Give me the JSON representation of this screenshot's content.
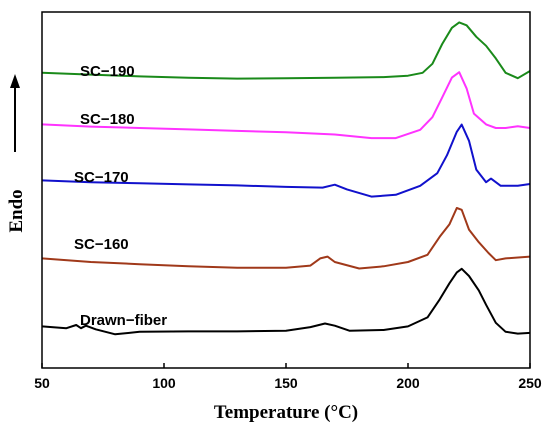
{
  "chart_data": {
    "type": "line",
    "xlabel": "Temperature (°C)",
    "ylabel": "Endo",
    "xlim": [
      50,
      250
    ],
    "x_ticks": [
      "50",
      "100",
      "150",
      "200",
      "250"
    ],
    "y_ticks_shown": false,
    "grid": false,
    "legend": "none",
    "series": [
      {
        "name": "SC-190",
        "label_text": "SC−190",
        "color": "#1a8a1a",
        "points": [
          [
            50,
            0.2
          ],
          [
            70,
            0.15
          ],
          [
            90,
            0.1
          ],
          [
            110,
            0.06
          ],
          [
            130,
            0.04
          ],
          [
            150,
            0.05
          ],
          [
            170,
            0.06
          ],
          [
            190,
            0.08
          ],
          [
            200,
            0.12
          ],
          [
            206,
            0.2
          ],
          [
            210,
            0.45
          ],
          [
            214,
            1.0
          ],
          [
            218,
            1.45
          ],
          [
            221,
            1.6
          ],
          [
            224,
            1.52
          ],
          [
            228,
            1.2
          ],
          [
            232,
            0.95
          ],
          [
            236,
            0.6
          ],
          [
            240,
            0.2
          ],
          [
            245,
            0.05
          ],
          [
            250,
            0.25
          ]
        ]
      },
      {
        "name": "SC-180",
        "label_text": "SC−180",
        "color": "#ff33ff",
        "points": [
          [
            50,
            0.1
          ],
          [
            70,
            0.04
          ],
          [
            90,
            0.0
          ],
          [
            110,
            -0.04
          ],
          [
            130,
            -0.08
          ],
          [
            150,
            -0.12
          ],
          [
            170,
            -0.18
          ],
          [
            185,
            -0.28
          ],
          [
            195,
            -0.28
          ],
          [
            205,
            -0.05
          ],
          [
            210,
            0.3
          ],
          [
            214,
            0.85
          ],
          [
            218,
            1.4
          ],
          [
            221,
            1.55
          ],
          [
            224,
            1.1
          ],
          [
            227,
            0.4
          ],
          [
            232,
            0.1
          ],
          [
            236,
            0.0
          ],
          [
            240,
            0.0
          ],
          [
            245,
            0.05
          ],
          [
            250,
            0.0
          ]
        ]
      },
      {
        "name": "SC-170",
        "label_text": "SC−170",
        "color": "#1111cc",
        "points": [
          [
            50,
            0.1
          ],
          [
            70,
            0.05
          ],
          [
            90,
            0.02
          ],
          [
            110,
            -0.01
          ],
          [
            130,
            -0.04
          ],
          [
            150,
            -0.08
          ],
          [
            165,
            -0.1
          ],
          [
            170,
            -0.02
          ],
          [
            175,
            -0.15
          ],
          [
            185,
            -0.35
          ],
          [
            195,
            -0.3
          ],
          [
            205,
            -0.05
          ],
          [
            212,
            0.3
          ],
          [
            216,
            0.8
          ],
          [
            220,
            1.45
          ],
          [
            222,
            1.65
          ],
          [
            225,
            1.2
          ],
          [
            228,
            0.4
          ],
          [
            232,
            0.05
          ],
          [
            234,
            0.15
          ],
          [
            238,
            -0.05
          ],
          [
            245,
            -0.05
          ],
          [
            250,
            0.0
          ]
        ]
      },
      {
        "name": "SC-160",
        "label_text": "SC−160",
        "color": "#a0391a",
        "points": [
          [
            50,
            0.1
          ],
          [
            70,
            0.0
          ],
          [
            90,
            -0.06
          ],
          [
            110,
            -0.12
          ],
          [
            130,
            -0.16
          ],
          [
            150,
            -0.16
          ],
          [
            160,
            -0.1
          ],
          [
            164,
            0.1
          ],
          [
            167,
            0.15
          ],
          [
            170,
            0.0
          ],
          [
            180,
            -0.18
          ],
          [
            190,
            -0.12
          ],
          [
            200,
            0.0
          ],
          [
            208,
            0.2
          ],
          [
            213,
            0.7
          ],
          [
            217,
            1.05
          ],
          [
            220,
            1.5
          ],
          [
            222,
            1.45
          ],
          [
            225,
            0.9
          ],
          [
            229,
            0.55
          ],
          [
            233,
            0.25
          ],
          [
            236,
            0.05
          ],
          [
            240,
            0.1
          ],
          [
            250,
            0.15
          ]
        ]
      },
      {
        "name": "Drawn-fiber",
        "label_text": "Drawn−fiber",
        "color": "#000000",
        "points": [
          [
            50,
            0.1
          ],
          [
            60,
            0.05
          ],
          [
            64,
            0.14
          ],
          [
            66,
            0.05
          ],
          [
            68,
            0.12
          ],
          [
            72,
            0.02
          ],
          [
            80,
            -0.12
          ],
          [
            90,
            -0.05
          ],
          [
            110,
            -0.04
          ],
          [
            130,
            -0.04
          ],
          [
            150,
            -0.02
          ],
          [
            160,
            0.08
          ],
          [
            166,
            0.18
          ],
          [
            170,
            0.12
          ],
          [
            176,
            -0.02
          ],
          [
            190,
            0.0
          ],
          [
            200,
            0.1
          ],
          [
            208,
            0.35
          ],
          [
            213,
            0.85
          ],
          [
            217,
            1.3
          ],
          [
            220,
            1.6
          ],
          [
            222,
            1.7
          ],
          [
            225,
            1.5
          ],
          [
            229,
            1.1
          ],
          [
            232,
            0.7
          ],
          [
            236,
            0.2
          ],
          [
            240,
            -0.05
          ],
          [
            245,
            -0.1
          ],
          [
            250,
            -0.08
          ]
        ]
      }
    ]
  }
}
